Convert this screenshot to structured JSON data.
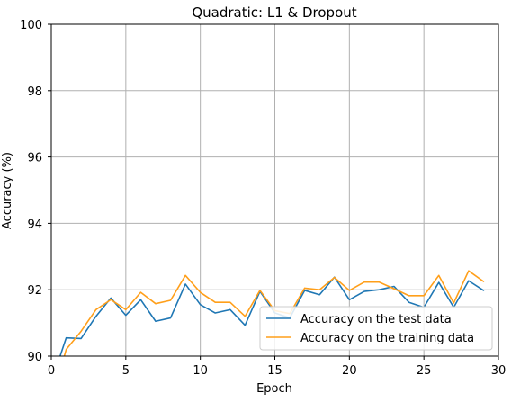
{
  "chart_data": {
    "type": "line",
    "title": "Quadratic:  L1 & Dropout",
    "xlabel": "Epoch",
    "ylabel": "Accuracy (%)",
    "xlim": [
      0,
      30
    ],
    "ylim": [
      90,
      100
    ],
    "xticks": [
      0,
      5,
      10,
      15,
      20,
      25,
      30
    ],
    "yticks": [
      90,
      92,
      94,
      96,
      98,
      100
    ],
    "grid": true,
    "legend_position": "lower right",
    "series": [
      {
        "name": "Accuracy on the test data",
        "color": "#1f77b4",
        "x": [
          0,
          1,
          2,
          3,
          4,
          5,
          6,
          7,
          8,
          9,
          10,
          11,
          12,
          13,
          14,
          15,
          16,
          17,
          18,
          19,
          20,
          21,
          22,
          23,
          24,
          25,
          26,
          27,
          28,
          29
        ],
        "y": [
          89.2,
          90.55,
          90.53,
          91.2,
          91.75,
          91.23,
          91.7,
          91.05,
          91.15,
          92.17,
          91.55,
          91.3,
          91.4,
          90.93,
          91.95,
          91.3,
          91.15,
          91.98,
          91.85,
          92.38,
          91.7,
          91.95,
          92.0,
          92.1,
          91.62,
          91.47,
          92.22,
          91.47,
          92.27,
          91.98
        ]
      },
      {
        "name": "Accuracy on the training data",
        "color": "#ff9f1a",
        "x": [
          0,
          1,
          2,
          3,
          4,
          5,
          6,
          7,
          8,
          9,
          10,
          11,
          12,
          13,
          14,
          15,
          16,
          17,
          18,
          19,
          20,
          21,
          22,
          23,
          24,
          25,
          26,
          27,
          28,
          29
        ],
        "y": [
          88.6,
          90.2,
          90.75,
          91.4,
          91.7,
          91.4,
          91.92,
          91.58,
          91.68,
          92.43,
          91.92,
          91.62,
          91.62,
          91.2,
          91.98,
          91.37,
          91.28,
          92.05,
          92.0,
          92.37,
          91.98,
          92.23,
          92.23,
          92.03,
          91.82,
          91.82,
          92.43,
          91.6,
          92.57,
          92.25
        ]
      }
    ]
  }
}
